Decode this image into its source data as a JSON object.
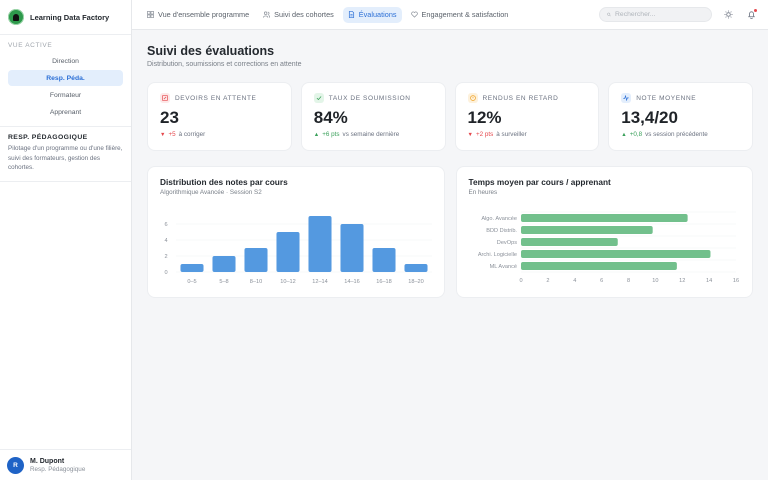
{
  "app": {
    "name": "Learning Data Factory",
    "logo_icon": "lightbulb-icon"
  },
  "sidebar": {
    "section_label": "VUE ACTIVE",
    "roles": [
      {
        "label": "Direction",
        "active": false
      },
      {
        "label": "Resp. Péda.",
        "active": true
      },
      {
        "label": "Formateur",
        "active": false
      },
      {
        "label": "Apprenant",
        "active": false
      }
    ],
    "role_description": {
      "title": "RESP. PÉDAGOGIQUE",
      "text": "Pilotage d'un programme ou d'une filière, suivi des formateurs, gestion des cohortes."
    },
    "user": {
      "initial": "R",
      "name": "M. Dupont",
      "role": "Resp. Pédagogique"
    }
  },
  "topbar": {
    "tabs": [
      {
        "label": "Vue d'ensemble programme",
        "icon": "grid-icon",
        "active": false
      },
      {
        "label": "Suivi des cohortes",
        "icon": "users-icon",
        "active": false
      },
      {
        "label": "Évaluations",
        "icon": "document-icon",
        "active": true
      },
      {
        "label": "Engagement & satisfaction",
        "icon": "heart-icon",
        "active": false
      }
    ],
    "search_placeholder": "Rechercher...",
    "theme_icon": "sun-icon",
    "notification_icon": "bell-icon"
  },
  "page": {
    "title": "Suivi des évaluations",
    "subtitle": "Distribution, soumissions et corrections en attente"
  },
  "kpis": [
    {
      "label": "DEVOIRS EN ATTENTE",
      "value": "23",
      "delta": "+5",
      "delta_text": "à corriger",
      "direction": "down",
      "icon": "edit-icon",
      "icon_color": "#e5484d",
      "icon_bg": "#fde8e8"
    },
    {
      "label": "TAUX DE SOUMISSION",
      "value": "84%",
      "delta": "+6 pts",
      "delta_text": "vs semaine dernière",
      "direction": "up",
      "icon": "check-icon",
      "icon_color": "#3aa05a",
      "icon_bg": "#e3f5e8"
    },
    {
      "label": "RENDUS EN RETARD",
      "value": "12%",
      "delta": "+2 pts",
      "delta_text": "à surveiller",
      "direction": "down",
      "icon": "clock-icon",
      "icon_color": "#f0a020",
      "icon_bg": "#fdf1dc"
    },
    {
      "label": "NOTE MOYENNE",
      "value": "13,4/20",
      "delta": "+0,8",
      "delta_text": "vs session précédente",
      "direction": "up",
      "icon": "activity-icon",
      "icon_color": "#2b6fd6",
      "icon_bg": "#e3eefc"
    }
  ],
  "colors": {
    "accent": "#2b6fd6",
    "bar_blue": "#5499e0",
    "bar_green": "#72c08c",
    "down": "#e5484d",
    "up": "#3aa05a"
  },
  "chart_data": [
    {
      "type": "bar",
      "title": "Distribution des notes par cours",
      "subtitle": "Algorithmique Avancée · Session S2",
      "categories": [
        "0–5",
        "5–8",
        "8–10",
        "10–12",
        "12–14",
        "14–16",
        "16–18",
        "18–20"
      ],
      "values": [
        1,
        2,
        3,
        5,
        7,
        6,
        3,
        1
      ],
      "yticks": [
        "0",
        "2",
        "4",
        "6"
      ],
      "ylim": [
        0,
        7.5
      ],
      "grid": true,
      "xlabel": "",
      "ylabel": ""
    },
    {
      "type": "bar",
      "orientation": "horizontal",
      "title": "Temps moyen par cours / apprenant",
      "subtitle": "En heures",
      "categories": [
        "Algo. Avancée",
        "BDD Distrib.",
        "DevOps",
        "Archi. Logicielle",
        "ML Avancé"
      ],
      "values": [
        12.4,
        9.8,
        7.2,
        14.1,
        11.6
      ],
      "xticks": [
        "0",
        "2",
        "4",
        "6",
        "8",
        "10",
        "12",
        "14",
        "16"
      ],
      "xlim": [
        0,
        16
      ],
      "grid": true,
      "xlabel": "",
      "ylabel": ""
    }
  ]
}
